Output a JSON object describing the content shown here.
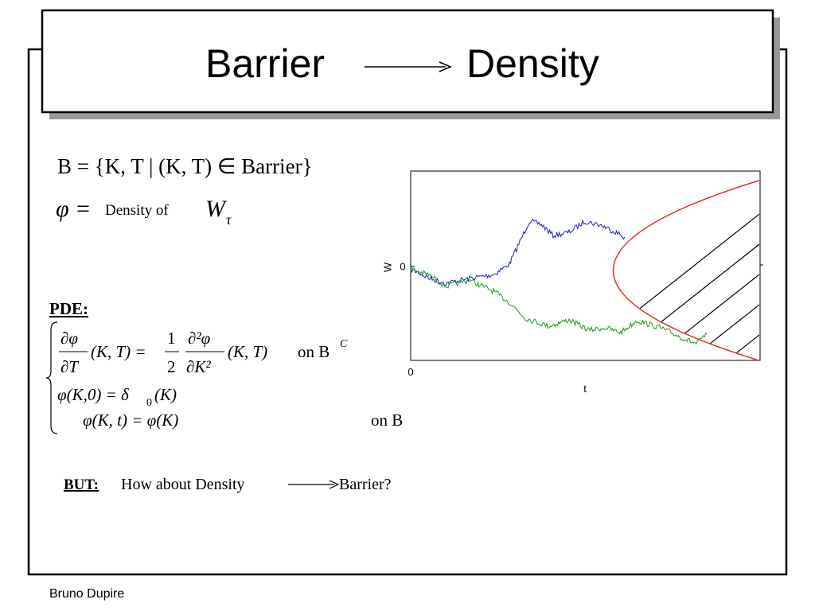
{
  "title": {
    "left": "Barrier",
    "right": "Density"
  },
  "definitions": {
    "barrier_set": "B = {K, T | (K, T) ∈ Barrier}",
    "phi": "φ =",
    "density_of": "Density of",
    "w": "W",
    "tau": "τ"
  },
  "pde": {
    "label": "PDE:",
    "dphi": "∂φ",
    "dT": "∂T",
    "kt_eq": "(K, T) =",
    "one": "1",
    "two": "2",
    "d2phi": "∂²φ",
    "dK2": "∂K²",
    "kt": "(K, T)",
    "on_b": "on B",
    "complement": "C",
    "initial": "φ(K,0) = δ",
    "delta_sub": "0",
    "initial_arg": "(K)",
    "boundary": "φ(K, t) = φ(K)",
    "on_b2": "on B"
  },
  "plot": {
    "y_label": "W",
    "y_zero": "0",
    "x_zero": "0",
    "x_label": "t"
  },
  "question": {
    "label": "BUT:",
    "before": "How about Density",
    "after": "Barrier?"
  },
  "footer": "Bruno Dupire"
}
